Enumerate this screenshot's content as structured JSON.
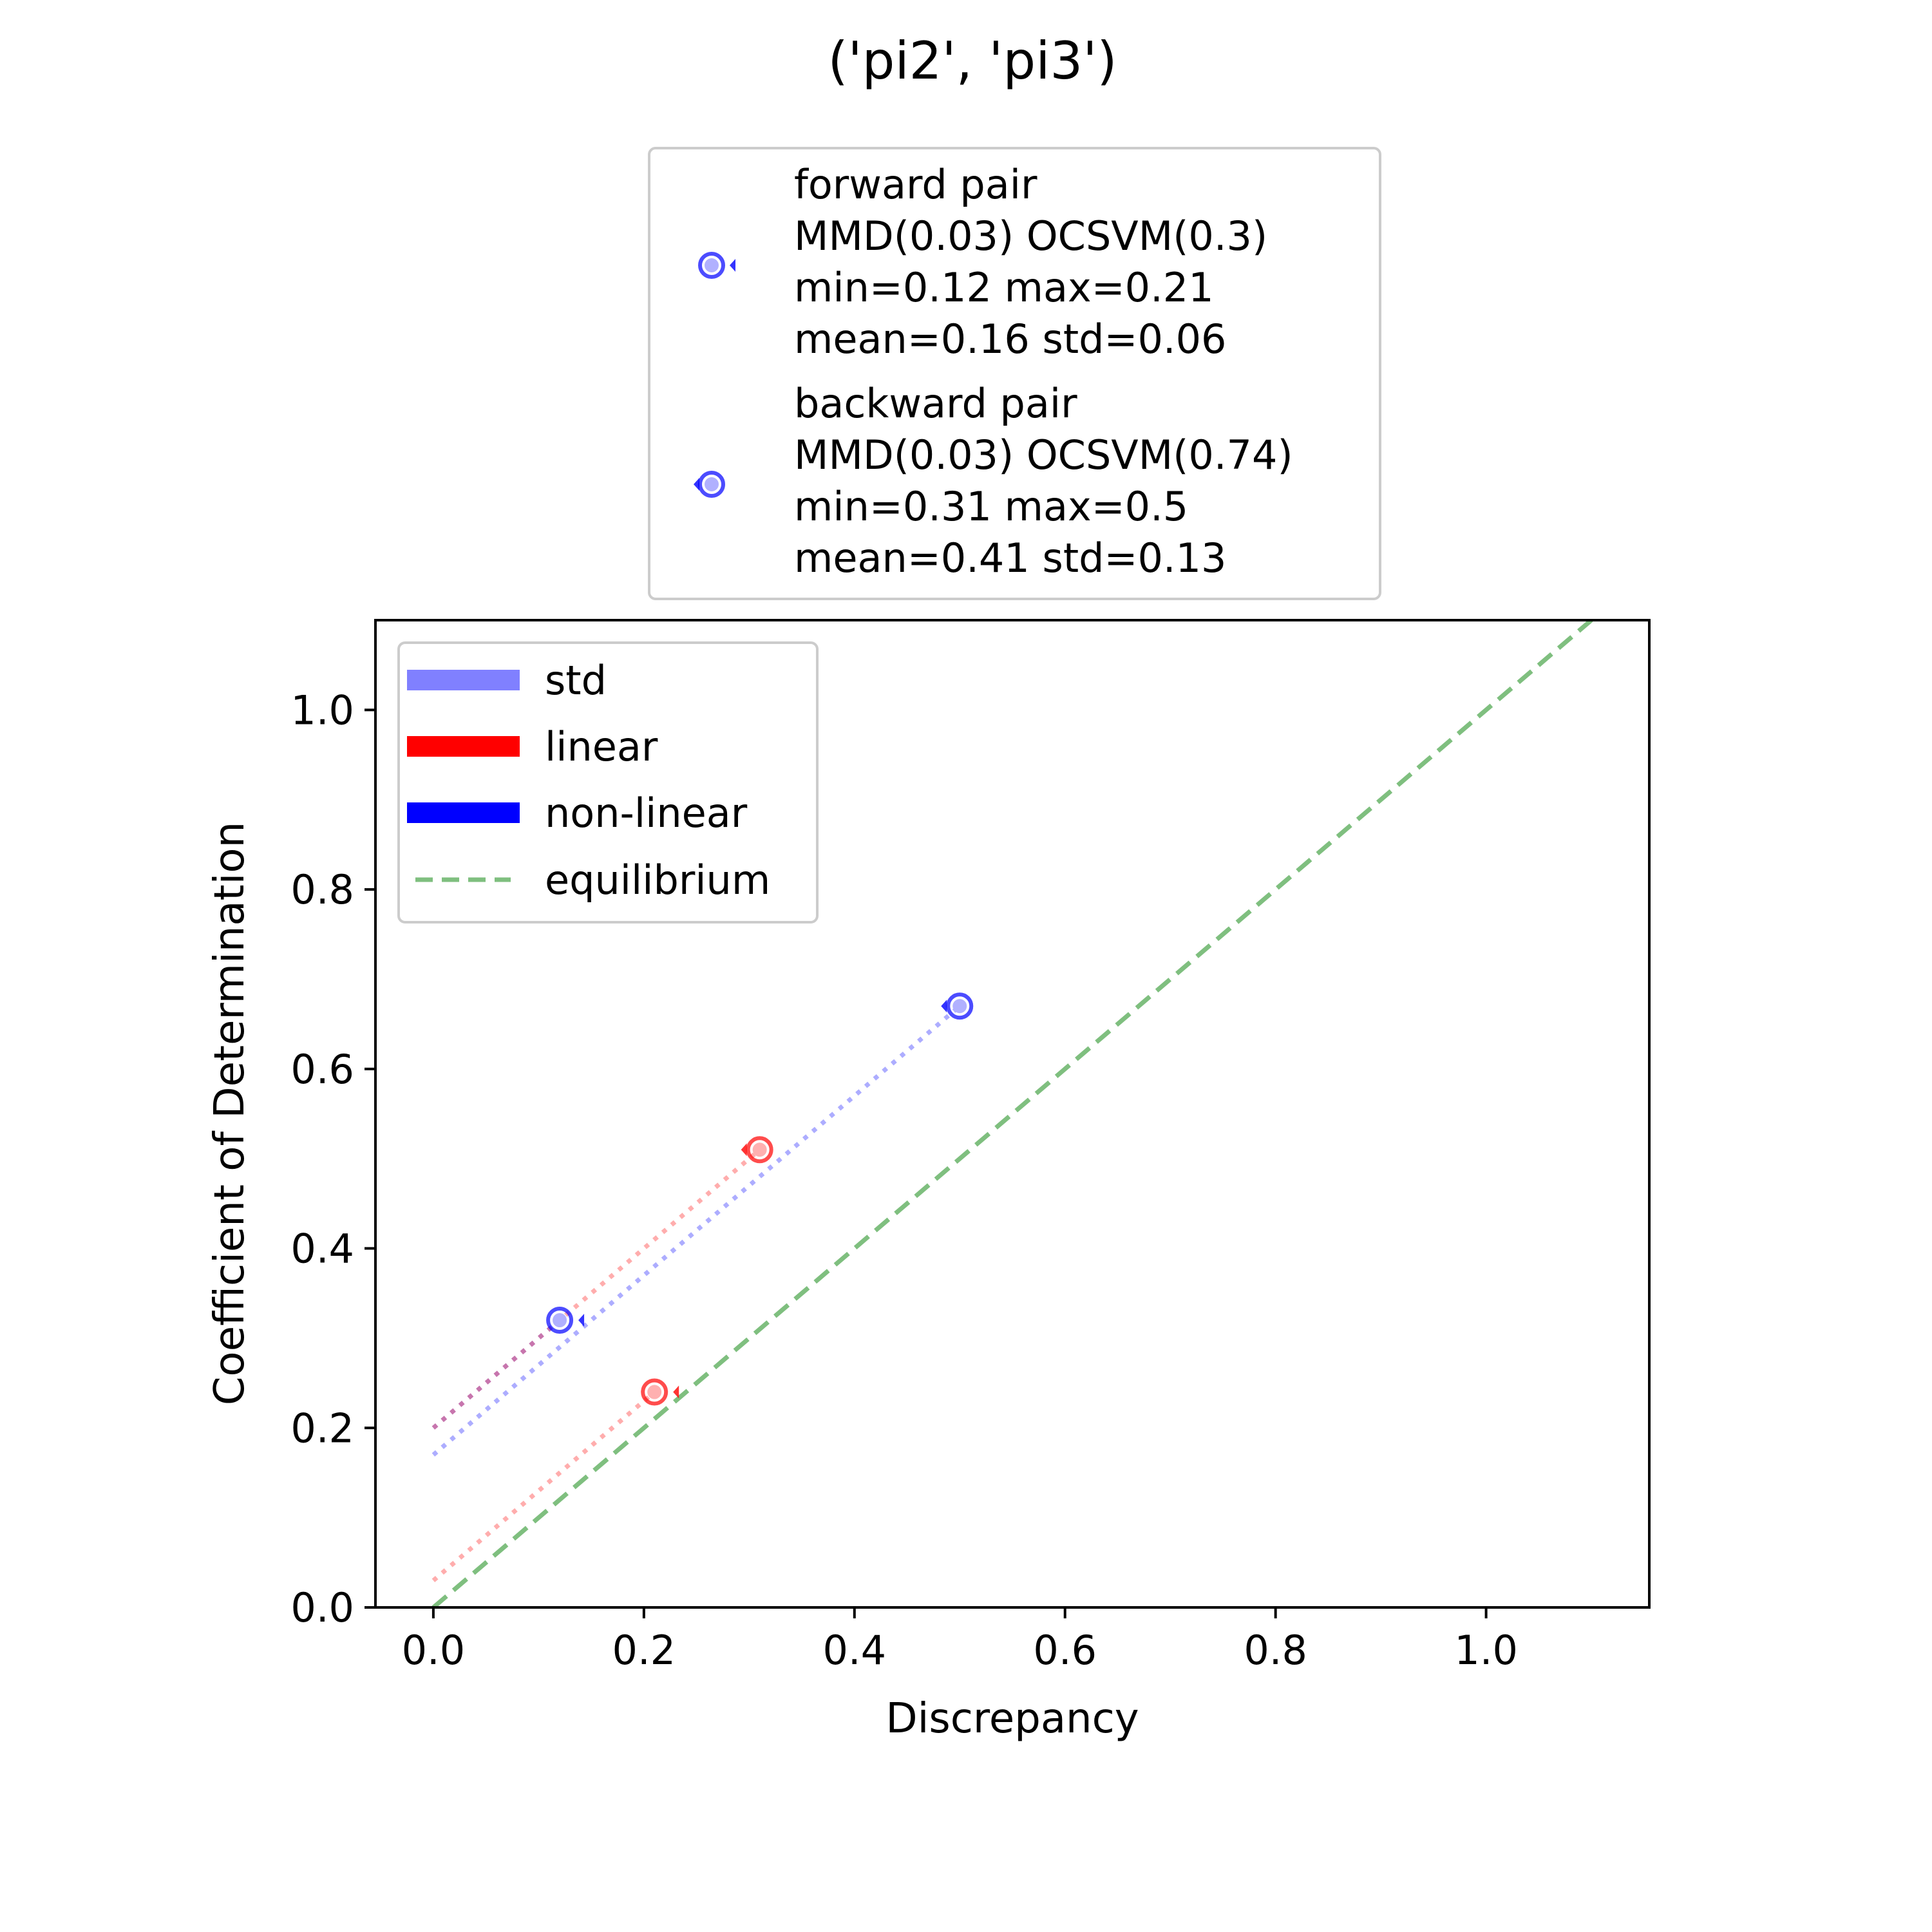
{
  "chart_data": {
    "type": "scatter",
    "title": "('pi2', 'pi3')",
    "xlabel": "Discrepancy",
    "ylabel": "Coefficient of Determination",
    "xlim": [
      -0.055,
      1.155
    ],
    "ylim": [
      0.0,
      1.1
    ],
    "xticks": [
      0.0,
      0.2,
      0.4,
      0.6,
      0.8,
      1.0
    ],
    "yticks": [
      0.0,
      0.2,
      0.4,
      0.6,
      0.8,
      1.0
    ],
    "xtick_labels": [
      "0.0",
      "0.2",
      "0.4",
      "0.6",
      "0.8",
      "1.0"
    ],
    "ytick_labels": [
      "0.0",
      "0.2",
      "0.4",
      "0.6",
      "0.8",
      "1.0"
    ],
    "grid": false,
    "legend_top": {
      "placement": "above plot",
      "entries": [
        {
          "lines": [
            "forward pair",
            "MMD(0.03) OCSVM(0.3)",
            "min=0.12 max=0.21",
            "mean=0.16 std=0.06"
          ],
          "marker": "forward"
        },
        {
          "lines": [
            "backward pair",
            "MMD(0.03) OCSVM(0.74)",
            "min=0.31 max=0.5",
            "mean=0.41 std=0.13"
          ],
          "marker": "backward"
        }
      ]
    },
    "legend_inner": {
      "placement": "upper left",
      "entries": [
        {
          "label": "std",
          "style": "patch",
          "color": "#8080ff"
        },
        {
          "label": "linear",
          "style": "patch",
          "color": "#ff0000"
        },
        {
          "label": "non-linear",
          "style": "patch",
          "color": "#0000ff"
        },
        {
          "label": "equilibrium",
          "style": "dashed",
          "color": "#7fbf7f"
        }
      ]
    },
    "equilibrium": {
      "points": [
        [
          0.0,
          0.0
        ],
        [
          1.1,
          1.1
        ]
      ],
      "color": "#7fbf7f"
    },
    "series": [
      {
        "pair": "forward",
        "kind": "linear",
        "color": "#ff0000",
        "point": [
          0.21,
          0.24
        ],
        "fit_start": [
          0.0,
          0.03
        ]
      },
      {
        "pair": "forward",
        "kind": "non-linear",
        "color": "#0000ff",
        "point": [
          0.12,
          0.32
        ],
        "fit_start": [
          0.0,
          0.2
        ]
      },
      {
        "pair": "backward",
        "kind": "linear",
        "color": "#ff0000",
        "point": [
          0.31,
          0.51
        ],
        "fit_start": [
          0.0,
          0.2
        ]
      },
      {
        "pair": "backward",
        "kind": "non-linear",
        "color": "#0000ff",
        "point": [
          0.5,
          0.67
        ],
        "fit_start": [
          0.0,
          0.17
        ]
      }
    ]
  }
}
